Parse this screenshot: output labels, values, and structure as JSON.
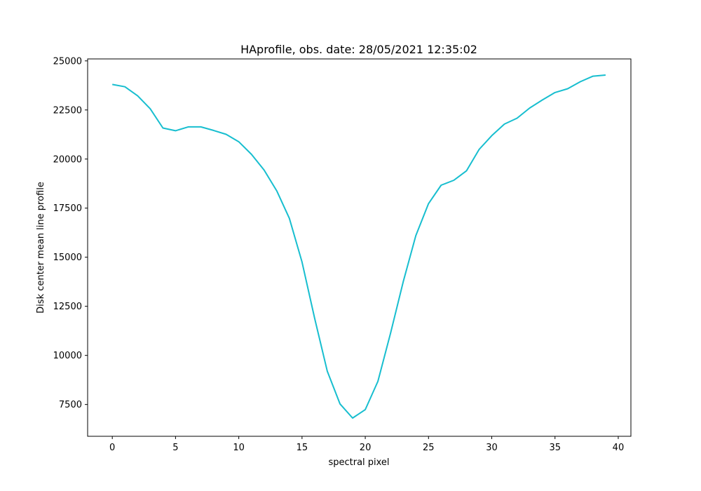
{
  "chart_data": {
    "type": "line",
    "title": "HAprofile, obs. date: 28/05/2021 12:35:02",
    "xlabel": "spectral pixel",
    "ylabel": "Disk center mean line profile",
    "xlim": [
      -1.95,
      41.0
    ],
    "ylim": [
      5880,
      25100
    ],
    "xticks": [
      0,
      5,
      10,
      15,
      20,
      25,
      30,
      35,
      40
    ],
    "yticks": [
      7500,
      10000,
      12500,
      15000,
      17500,
      20000,
      22500,
      25000
    ],
    "grid": false,
    "legend": "none",
    "colors": {
      "line": "#17becf"
    },
    "series": [
      {
        "x": [
          0,
          1,
          2,
          3,
          4,
          5,
          6,
          7,
          8,
          9,
          10,
          11,
          12,
          13,
          14,
          15,
          16,
          17,
          18,
          19,
          20,
          21,
          22,
          23,
          24,
          25,
          26,
          27,
          28,
          29,
          30,
          31,
          32,
          33,
          34,
          35,
          36,
          37,
          38,
          39
        ],
        "values": [
          23800,
          23680,
          23220,
          22560,
          21580,
          21440,
          21640,
          21640,
          21460,
          21260,
          20880,
          20240,
          19440,
          18380,
          16980,
          14760,
          11880,
          9190,
          7530,
          6810,
          7240,
          8680,
          11140,
          13750,
          16100,
          17730,
          18670,
          18920,
          19400,
          20490,
          21190,
          21780,
          22080,
          22600,
          23010,
          23390,
          23580,
          23940,
          24220,
          24280
        ]
      }
    ]
  }
}
